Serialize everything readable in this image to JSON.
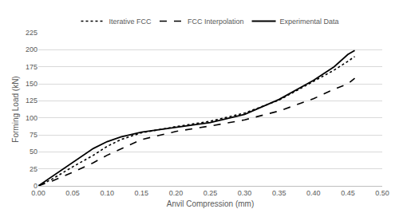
{
  "chart_data": {
    "type": "line",
    "x_label": "Anvil Compression (mm)",
    "y_label": "Forming Load (kN)",
    "x": [
      0,
      0.02,
      0.05,
      0.08,
      0.1,
      0.12,
      0.15,
      0.2,
      0.25,
      0.3,
      0.35,
      0.4,
      0.43,
      0.45,
      0.46
    ],
    "series": [
      {
        "name": "Iterative FCC",
        "color": "#000000",
        "line_style": "dot",
        "values": [
          0,
          10,
          28,
          45,
          58,
          68,
          78,
          87,
          95,
          107,
          126,
          153,
          170,
          183,
          190
        ]
      },
      {
        "name": "FCC Interpolation",
        "color": "#000000",
        "line_style": "dash",
        "values": [
          0,
          7,
          20,
          34,
          45,
          54,
          68,
          80,
          88,
          97,
          110,
          128,
          142,
          150,
          158
        ]
      },
      {
        "name": "Experimental Data",
        "color": "#000000",
        "line_style": "solid",
        "values": [
          0,
          14,
          35,
          55,
          65,
          72,
          79,
          86,
          93,
          105,
          127,
          155,
          175,
          193,
          199
        ]
      }
    ],
    "xlim": [
      0,
      0.5
    ],
    "xticks": [
      {
        "value": 0,
        "label": "0.00"
      },
      0.05,
      {
        "value": 0.1,
        "label": "0.10"
      },
      0.15,
      {
        "value": 0.2,
        "label": "0.20"
      },
      0.25,
      {
        "value": 0.3,
        "label": "0.30"
      },
      0.35,
      {
        "value": 0.4,
        "label": "0.40"
      },
      0.45,
      {
        "value": 0.5,
        "label": "0.50"
      }
    ],
    "ylim": [
      0,
      225
    ],
    "yticks": [
      0,
      25,
      50,
      75,
      100,
      125,
      150,
      175,
      200,
      225
    ],
    "grid": true,
    "legend": "top"
  }
}
